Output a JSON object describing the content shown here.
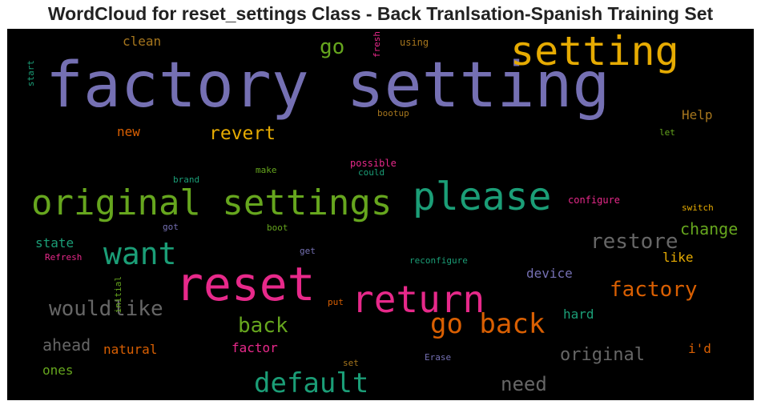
{
  "title": "WordCloud for reset_settings Class - Back Tranlsation-Spanish Training Set",
  "chart_data": {
    "type": "wordcloud",
    "colormap": "Dark2",
    "background": "#000000",
    "words": [
      {
        "text": "factory setting",
        "color": "#7570b3"
      },
      {
        "text": "setting",
        "color": "#e6ab02"
      },
      {
        "text": "original settings",
        "color": "#66a61e"
      },
      {
        "text": "please",
        "color": "#1b9e77"
      },
      {
        "text": "reset",
        "color": "#e7298a"
      },
      {
        "text": "return",
        "color": "#e7298a"
      },
      {
        "text": "go back",
        "color": "#d95f02"
      },
      {
        "text": "want",
        "color": "#1b9e77"
      },
      {
        "text": "default",
        "color": "#1b9e77"
      },
      {
        "text": "restore",
        "color": "#666666"
      },
      {
        "text": "would",
        "color": "#666666"
      },
      {
        "text": "like",
        "color": "#666666"
      },
      {
        "text": "factory",
        "color": "#d95f02"
      },
      {
        "text": "back",
        "color": "#66a61e"
      },
      {
        "text": "revert",
        "color": "#e6ab02"
      },
      {
        "text": "go",
        "color": "#66a61e"
      },
      {
        "text": "need",
        "color": "#666666"
      },
      {
        "text": "original",
        "color": "#666666"
      },
      {
        "text": "change",
        "color": "#66a61e"
      },
      {
        "text": "ahead",
        "color": "#666666"
      },
      {
        "text": "Help",
        "color": "#a6761d"
      },
      {
        "text": "clean",
        "color": "#a6761d"
      },
      {
        "text": "new",
        "color": "#d95f02"
      },
      {
        "text": "state",
        "color": "#1b9e77"
      },
      {
        "text": "natural",
        "color": "#d95f02"
      },
      {
        "text": "ones",
        "color": "#66a61e"
      },
      {
        "text": "factor",
        "color": "#e7298a"
      },
      {
        "text": "device",
        "color": "#7570b3"
      },
      {
        "text": "hard",
        "color": "#1b9e77"
      },
      {
        "text": "i'd",
        "color": "#d95f02"
      },
      {
        "text": "like",
        "color": "#e6ab02"
      },
      {
        "text": "fresh",
        "color": "#e7298a"
      },
      {
        "text": "using",
        "color": "#a6761d"
      },
      {
        "text": "start",
        "color": "#1b9e77"
      },
      {
        "text": "bootup",
        "color": "#a6761d"
      },
      {
        "text": "let",
        "color": "#66a61e"
      },
      {
        "text": "possible",
        "color": "#e7298a"
      },
      {
        "text": "could",
        "color": "#1b9e77"
      },
      {
        "text": "make",
        "color": "#66a61e"
      },
      {
        "text": "brand",
        "color": "#1b9e77"
      },
      {
        "text": "configure",
        "color": "#e7298a"
      },
      {
        "text": "switch",
        "color": "#e6ab02"
      },
      {
        "text": "got",
        "color": "#7570b3"
      },
      {
        "text": "boot",
        "color": "#66a61e"
      },
      {
        "text": "get",
        "color": "#7570b3"
      },
      {
        "text": "reconfigure",
        "color": "#1b9e77"
      },
      {
        "text": "Refresh",
        "color": "#e7298a"
      },
      {
        "text": "initial",
        "color": "#66a61e"
      },
      {
        "text": "put",
        "color": "#d95f02"
      },
      {
        "text": "Erase",
        "color": "#7570b3"
      },
      {
        "text": "set",
        "color": "#a6761d"
      }
    ]
  }
}
